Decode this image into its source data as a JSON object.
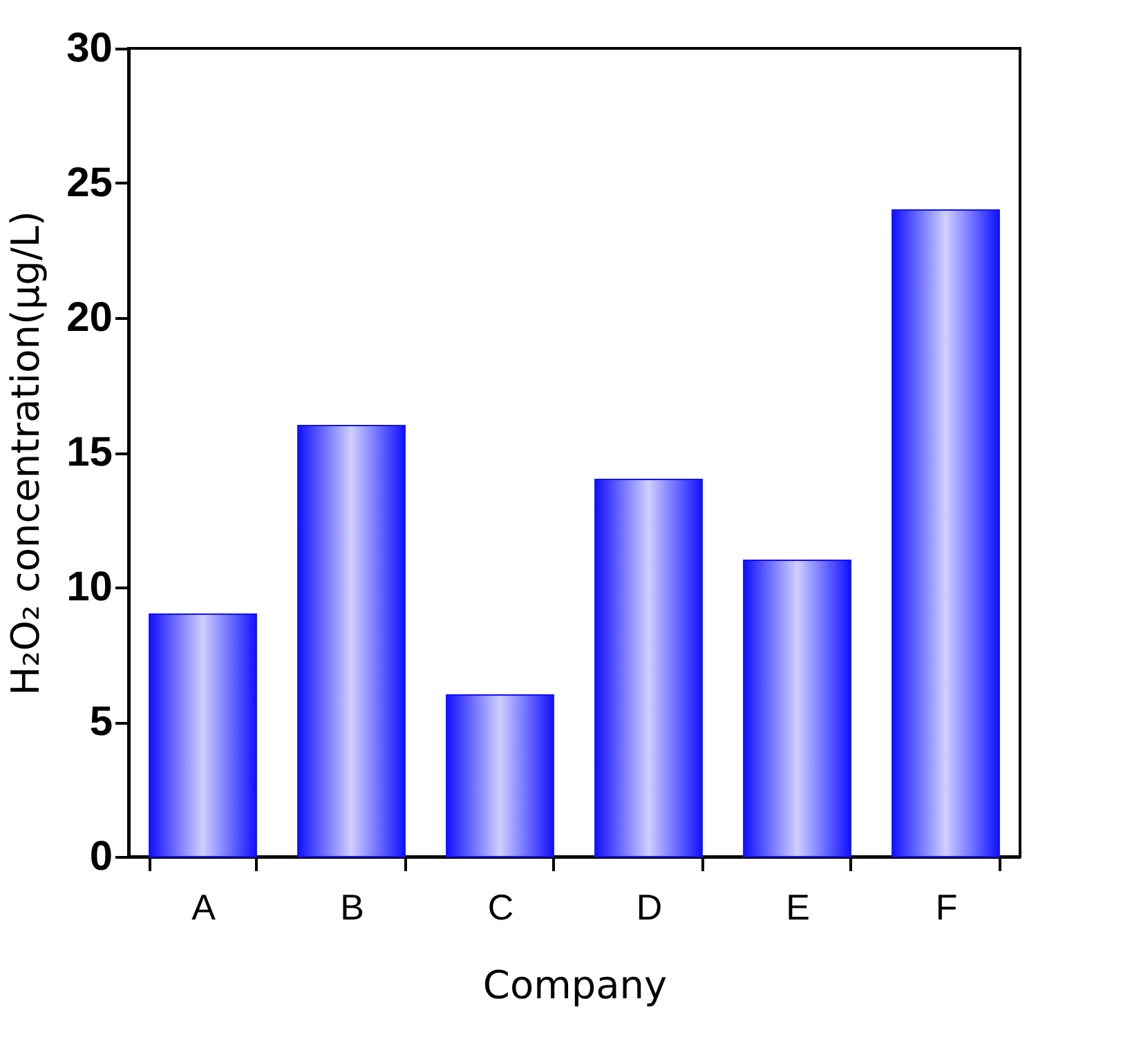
{
  "chart_data": {
    "type": "bar",
    "xlabel": "Company",
    "ylabel": "H₂O₂ concentration(μg/L)",
    "categories": [
      "A",
      "B",
      "C",
      "D",
      "E",
      "F"
    ],
    "values": [
      9,
      16,
      6,
      14,
      11,
      24
    ],
    "color": "#1010ff",
    "ylim": [
      0,
      30
    ],
    "yticks": [
      0,
      5,
      10,
      15,
      20,
      25,
      30
    ],
    "grid": false
  }
}
